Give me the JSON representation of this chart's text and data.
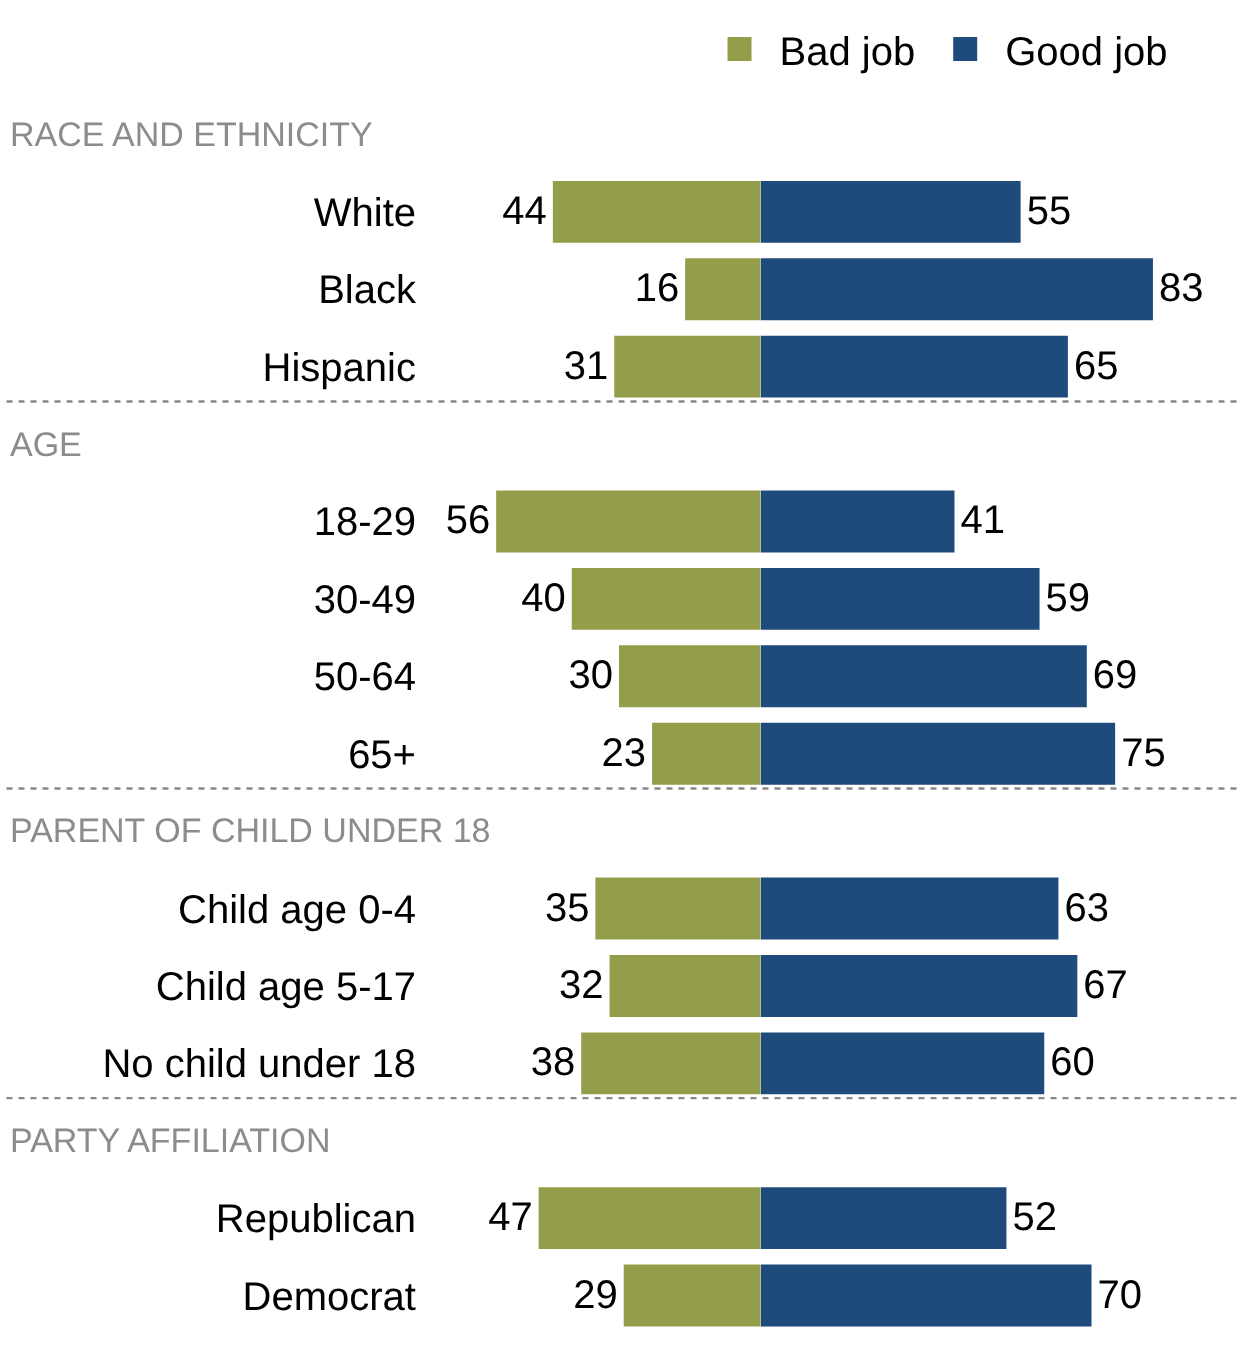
{
  "chart_data": [
    {
      "type": "bar",
      "orientation": "horizontal",
      "legend": "top",
      "data_labels": true,
      "tick_labels": "y",
      "categories": [
        null,
        "White",
        "Black",
        "Hispanic",
        null,
        "18-29",
        "30-49",
        "50-64",
        "65+",
        null,
        "Child age 0-4",
        "Child age 5-17",
        "No child under 18",
        null,
        "Republican",
        "Democrat"
      ],
      "series": [
        {
          "name": "Bad job",
          "color": "#939d4a",
          "values": [
            null,
            44,
            16,
            31,
            null,
            56,
            40,
            30,
            23,
            null,
            35,
            32,
            38,
            null,
            47,
            29
          ]
        }
      ],
      "annotations": [
        "RACE AND ETHNICITY",
        "AGE",
        "PARENT OF CHILD UNDER 18",
        "PARTY AFFILIATION"
      ]
    },
    {
      "type": "bar",
      "orientation": "horizontal",
      "legend": "top",
      "data_labels": true,
      "tick_labels": false,
      "categories": [
        null,
        "White",
        "Black",
        "Hispanic",
        null,
        "18-29",
        "30-49",
        "50-64",
        "65+",
        null,
        "Child age 0-4",
        "Child age 5-17",
        "No child under 18",
        null,
        "Republican",
        "Democrat"
      ],
      "series": [
        {
          "name": "Good job",
          "color": "#1f4a7c",
          "values": [
            null,
            55,
            83,
            65,
            null,
            41,
            59,
            69,
            75,
            null,
            63,
            67,
            60,
            null,
            52,
            70
          ]
        }
      ]
    }
  ]
}
